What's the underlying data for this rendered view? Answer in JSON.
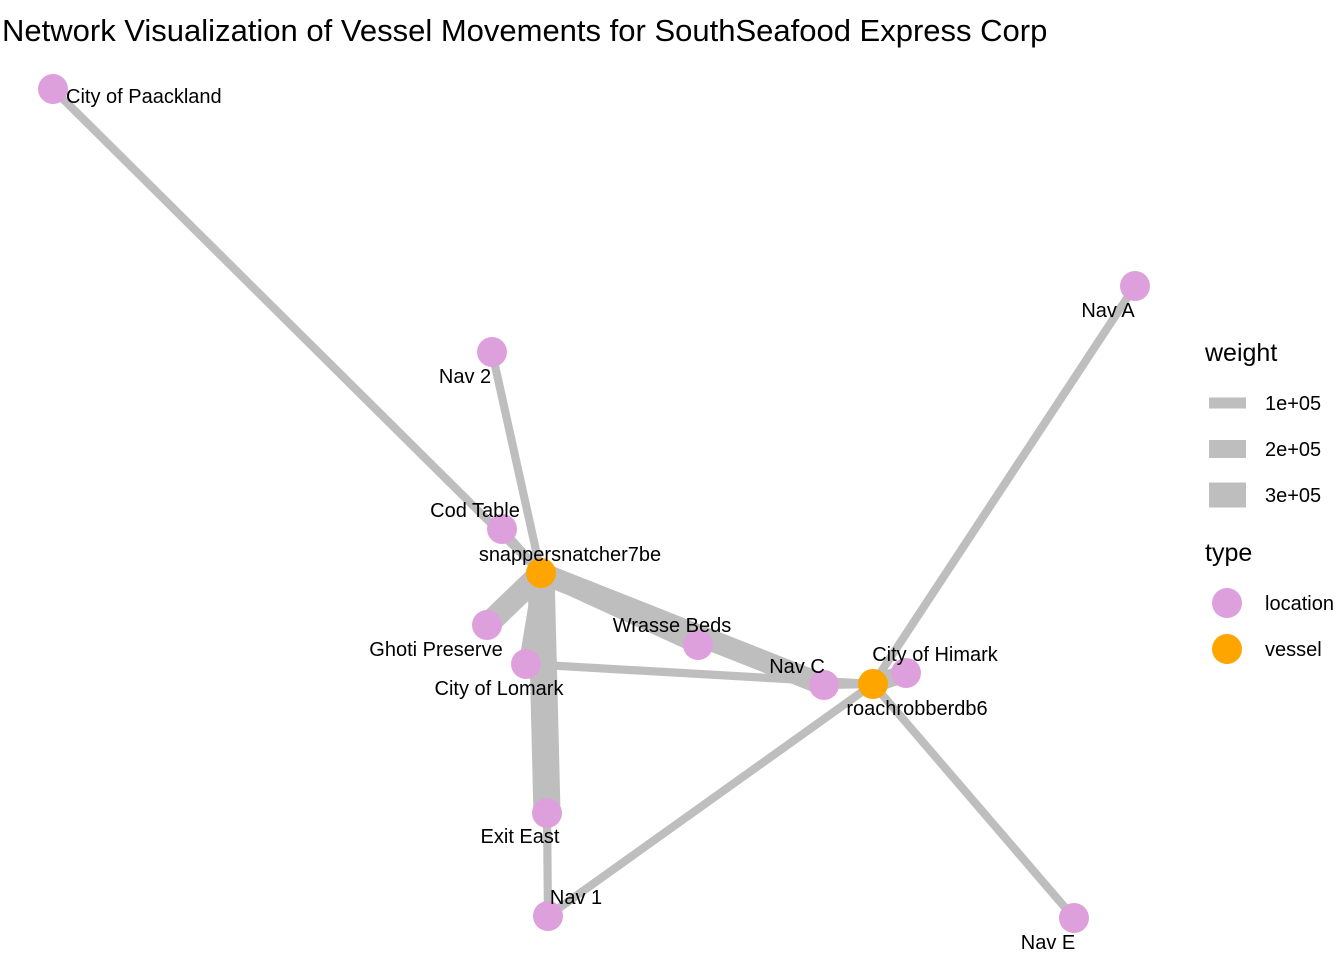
{
  "title": "Network Visualization of Vessel Movements for SouthSeafood Express Corp",
  "colors": {
    "location": "#dda0dd",
    "vessel": "#ffa500",
    "edge": "#bebebe"
  },
  "nodes": [
    {
      "id": "paackland",
      "label": "City of Paackland",
      "type": "location"
    },
    {
      "id": "nav2",
      "label": "Nav 2",
      "type": "location"
    },
    {
      "id": "navA",
      "label": "Nav A",
      "type": "location"
    },
    {
      "id": "codtable",
      "label": "Cod Table",
      "type": "location"
    },
    {
      "id": "snapper",
      "label": "snappersnatcher7be",
      "type": "vessel"
    },
    {
      "id": "ghoti",
      "label": "Ghoti Preserve",
      "type": "location"
    },
    {
      "id": "wrasse",
      "label": "Wrasse Beds",
      "type": "location"
    },
    {
      "id": "lomark",
      "label": "City of Lomark",
      "type": "location"
    },
    {
      "id": "navC",
      "label": "Nav C",
      "type": "location"
    },
    {
      "id": "himark",
      "label": "City of Himark",
      "type": "location"
    },
    {
      "id": "roach",
      "label": "roachrobberdb6",
      "type": "vessel"
    },
    {
      "id": "exiteast",
      "label": "Exit East",
      "type": "location"
    },
    {
      "id": "nav1",
      "label": "Nav 1",
      "type": "location"
    },
    {
      "id": "navE",
      "label": "Nav E",
      "type": "location"
    }
  ],
  "edges": [
    {
      "from": "paackland",
      "to": "snapper",
      "weight": 60000
    },
    {
      "from": "nav2",
      "to": "snapper",
      "weight": 60000
    },
    {
      "from": "codtable",
      "to": "snapper",
      "weight": 60000
    },
    {
      "from": "snapper",
      "to": "wrasse",
      "weight": 200000
    },
    {
      "from": "snapper",
      "to": "navC",
      "weight": 250000
    },
    {
      "from": "snapper",
      "to": "ghoti",
      "weight": 270000
    },
    {
      "from": "snapper",
      "to": "lomark",
      "weight": 150000
    },
    {
      "from": "snapper",
      "to": "exiteast",
      "weight": 330000
    },
    {
      "from": "exiteast",
      "to": "nav1",
      "weight": 60000
    },
    {
      "from": "lomark",
      "to": "roach",
      "weight": 60000
    },
    {
      "from": "nav1",
      "to": "roach",
      "weight": 60000
    },
    {
      "from": "navA",
      "to": "roach",
      "weight": 60000
    },
    {
      "from": "navE",
      "to": "roach",
      "weight": 60000
    },
    {
      "from": "navC",
      "to": "roach",
      "weight": 60000
    },
    {
      "from": "himark",
      "to": "roach",
      "weight": 200000
    }
  ],
  "legend": {
    "weight_title": "weight",
    "weight_items": [
      {
        "label": "1e+05",
        "value": 100000
      },
      {
        "label": "2e+05",
        "value": 200000
      },
      {
        "label": "3e+05",
        "value": 300000
      }
    ],
    "type_title": "type",
    "type_items": [
      {
        "label": "location",
        "type": "location"
      },
      {
        "label": "vessel",
        "type": "vessel"
      }
    ]
  }
}
